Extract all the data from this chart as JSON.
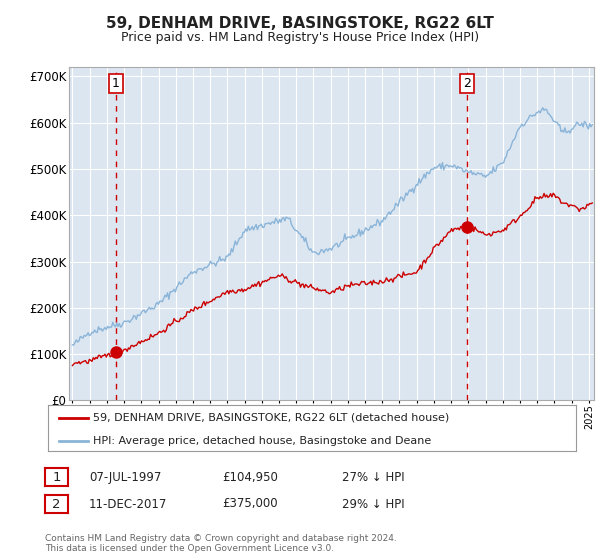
{
  "title": "59, DENHAM DRIVE, BASINGSTOKE, RG22 6LT",
  "subtitle": "Price paid vs. HM Land Registry's House Price Index (HPI)",
  "ylim": [
    0,
    720000
  ],
  "yticks": [
    0,
    100000,
    200000,
    300000,
    400000,
    500000,
    600000,
    700000
  ],
  "ytick_labels": [
    "£0",
    "£100K",
    "£200K",
    "£300K",
    "£400K",
    "£500K",
    "£600K",
    "£700K"
  ],
  "xlim_start": 1994.8,
  "xlim_end": 2025.3,
  "purchase1": {
    "date_num": 1997.52,
    "price": 104950,
    "label": "1"
  },
  "purchase2": {
    "date_num": 2017.94,
    "price": 375000,
    "label": "2"
  },
  "legend_property": "59, DENHAM DRIVE, BASINGSTOKE, RG22 6LT (detached house)",
  "legend_hpi": "HPI: Average price, detached house, Basingstoke and Deane",
  "annotation1": {
    "num": "1",
    "date": "07-JUL-1997",
    "price": "£104,950",
    "hpi": "27% ↓ HPI"
  },
  "annotation2": {
    "num": "2",
    "date": "11-DEC-2017",
    "price": "£375,000",
    "hpi": "29% ↓ HPI"
  },
  "footer": "Contains HM Land Registry data © Crown copyright and database right 2024.\nThis data is licensed under the Open Government Licence v3.0.",
  "hpi_color": "#8ab4d8",
  "property_color": "#cc0000",
  "dashed_color": "#cc0000",
  "plot_bg": "#dce6f1",
  "grid_color": "#ffffff",
  "marker_color": "#cc0000",
  "fig_bg": "#ffffff"
}
